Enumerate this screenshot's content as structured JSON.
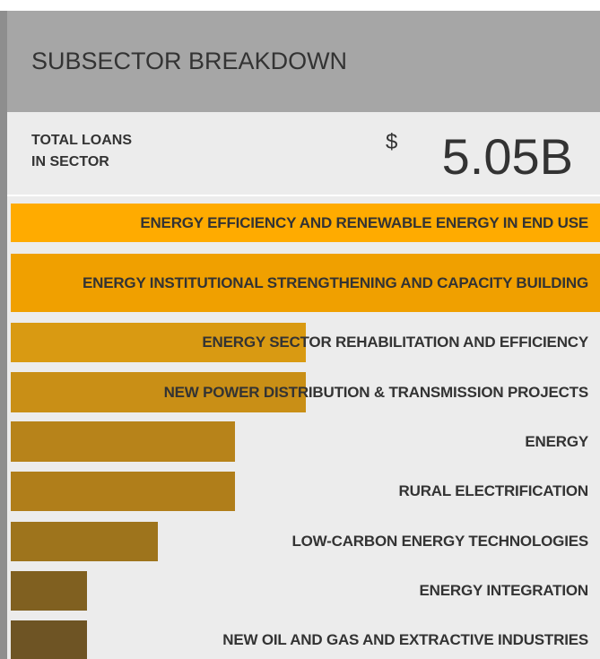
{
  "header": {
    "title": "SUBSECTOR BREAKDOWN"
  },
  "summary": {
    "label_lines": [
      "TOTAL LOANS",
      "IN SECTOR"
    ],
    "currency": "$",
    "amount": "5.05B"
  },
  "chart_data": {
    "type": "bar",
    "orientation": "horizontal",
    "categories": [
      "ENERGY EFFICIENCY AND RENEWABLE ENERGY IN END USE",
      "ENERGY INSTITUTIONAL STRENGTHENING AND CAPACITY BUILDING",
      "ENERGY SECTOR REHABILITATION AND EFFICIENCY",
      "NEW POWER DISTRIBUTION & TRANSMISSION PROJECTS",
      "ENERGY",
      "RURAL ELECTRIFICATION",
      "LOW-CARBON ENERGY TECHNOLOGIES",
      "ENERGY INTEGRATION",
      "NEW OIL AND GAS AND EXTRACTIVE INDUSTRIES"
    ],
    "values": [
      100,
      100,
      50,
      50,
      38,
      38,
      25,
      13,
      13
    ],
    "colors": [
      "#ffab00",
      "#f0a000",
      "#d99a12",
      "#c98f16",
      "#b7831a",
      "#b07e1a",
      "#9e741c",
      "#806020",
      "#6e5424"
    ],
    "xlim": [
      0,
      100
    ]
  }
}
